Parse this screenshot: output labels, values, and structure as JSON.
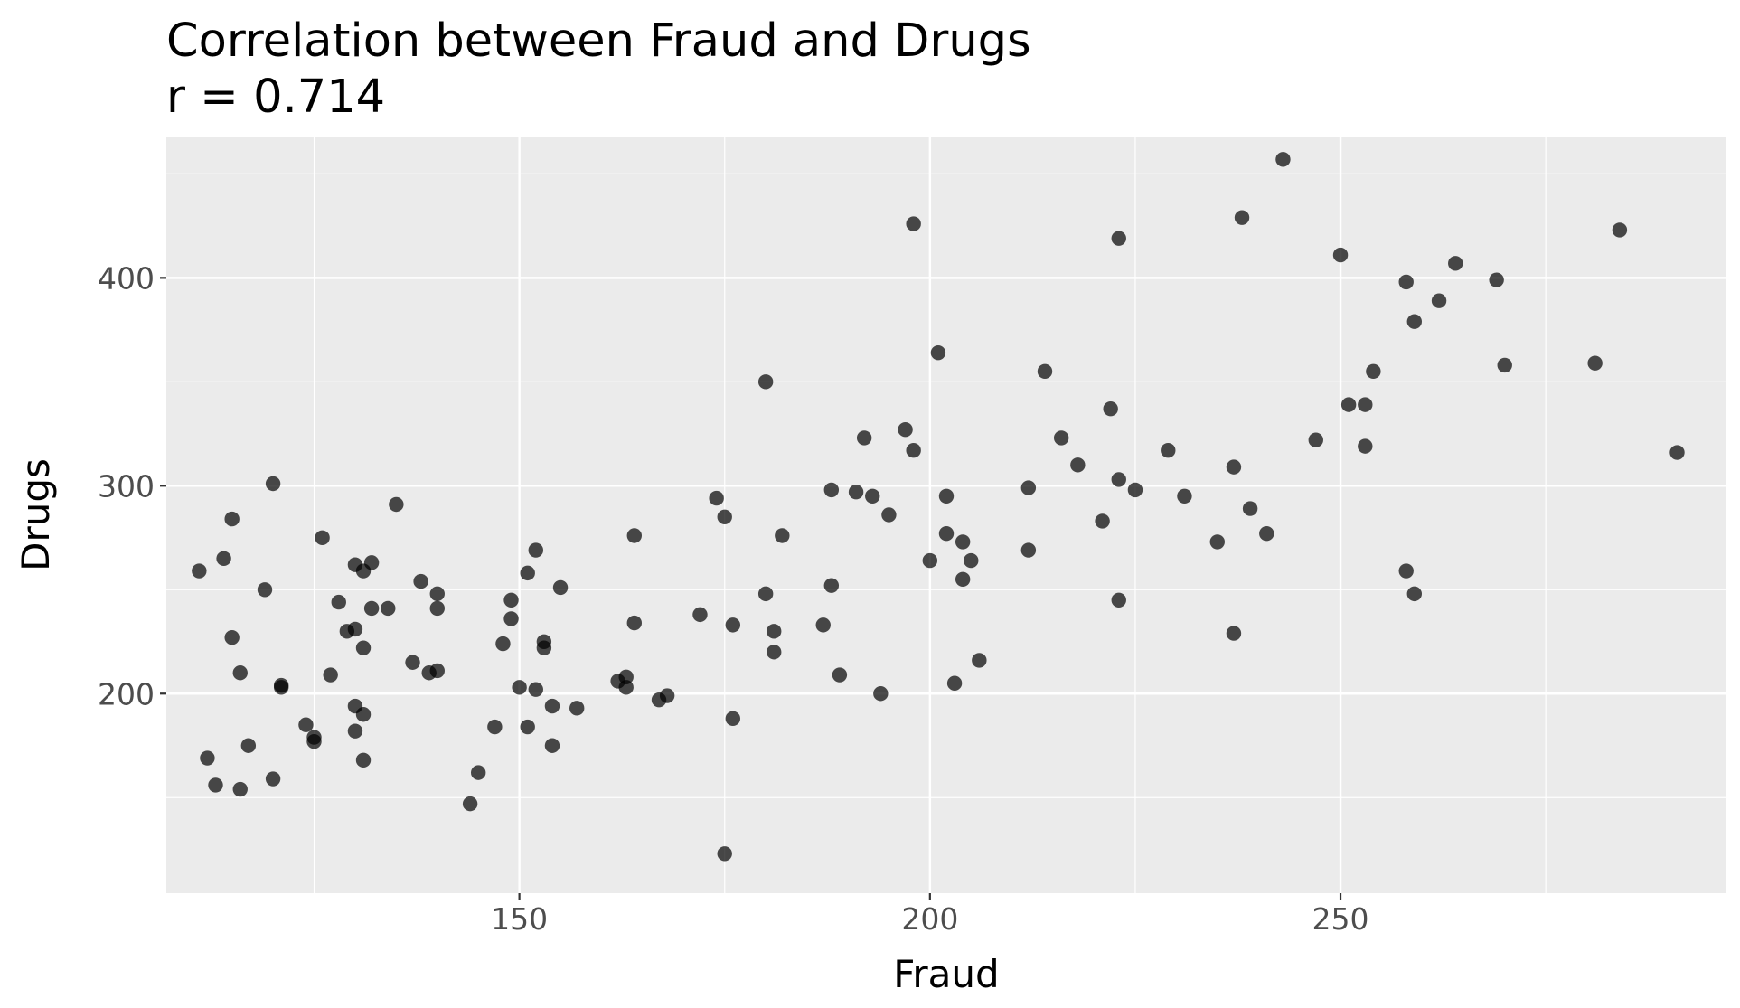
{
  "chart_data": {
    "type": "scatter",
    "title": "Correlation between Fraud and Drugs",
    "subtitle": "r = 0.714",
    "xlabel": "Fraud",
    "ylabel": "Drugs",
    "xlim": [
      107,
      297
    ],
    "ylim": [
      104,
      468
    ],
    "xticks": [
      150,
      200,
      250
    ],
    "yticks": [
      200,
      300,
      400
    ],
    "x_tick_labels": [
      "150",
      "200",
      "250"
    ],
    "y_tick_labels": [
      "200",
      "300",
      "400"
    ],
    "grid": true,
    "point_color": "#000000",
    "point_opacity": 0.7,
    "panel_color": "#ebebeb",
    "points": [
      [
        111,
        259
      ],
      [
        112,
        169
      ],
      [
        113,
        156
      ],
      [
        114,
        265
      ],
      [
        115,
        284
      ],
      [
        115,
        227
      ],
      [
        116,
        154
      ],
      [
        116,
        210
      ],
      [
        117,
        175
      ],
      [
        119,
        250
      ],
      [
        120,
        301
      ],
      [
        120,
        159
      ],
      [
        121,
        204
      ],
      [
        121,
        203
      ],
      [
        124,
        185
      ],
      [
        125,
        179
      ],
      [
        125,
        177
      ],
      [
        126,
        275
      ],
      [
        127,
        209
      ],
      [
        128,
        244
      ],
      [
        129,
        230
      ],
      [
        130,
        262
      ],
      [
        130,
        231
      ],
      [
        130,
        194
      ],
      [
        130,
        182
      ],
      [
        131,
        259
      ],
      [
        131,
        222
      ],
      [
        131,
        190
      ],
      [
        131,
        168
      ],
      [
        132,
        263
      ],
      [
        132,
        241
      ],
      [
        134,
        241
      ],
      [
        135,
        291
      ],
      [
        137,
        215
      ],
      [
        138,
        254
      ],
      [
        139,
        210
      ],
      [
        140,
        248
      ],
      [
        140,
        241
      ],
      [
        140,
        211
      ],
      [
        144,
        147
      ],
      [
        145,
        162
      ],
      [
        147,
        184
      ],
      [
        148,
        224
      ],
      [
        149,
        245
      ],
      [
        149,
        236
      ],
      [
        150,
        203
      ],
      [
        151,
        258
      ],
      [
        151,
        184
      ],
      [
        152,
        269
      ],
      [
        152,
        202
      ],
      [
        153,
        225
      ],
      [
        153,
        222
      ],
      [
        154,
        194
      ],
      [
        154,
        175
      ],
      [
        155,
        251
      ],
      [
        157,
        193
      ],
      [
        162,
        206
      ],
      [
        163,
        208
      ],
      [
        163,
        203
      ],
      [
        164,
        276
      ],
      [
        164,
        234
      ],
      [
        167,
        197
      ],
      [
        168,
        199
      ],
      [
        172,
        238
      ],
      [
        174,
        294
      ],
      [
        175,
        285
      ],
      [
        175,
        123
      ],
      [
        176,
        233
      ],
      [
        176,
        188
      ],
      [
        180,
        350
      ],
      [
        180,
        248
      ],
      [
        181,
        230
      ],
      [
        181,
        220
      ],
      [
        182,
        276
      ],
      [
        187,
        233
      ],
      [
        188,
        298
      ],
      [
        188,
        252
      ],
      [
        189,
        209
      ],
      [
        191,
        297
      ],
      [
        192,
        323
      ],
      [
        193,
        295
      ],
      [
        194,
        200
      ],
      [
        195,
        286
      ],
      [
        197,
        327
      ],
      [
        198,
        426
      ],
      [
        198,
        317
      ],
      [
        200,
        264
      ],
      [
        201,
        364
      ],
      [
        202,
        295
      ],
      [
        202,
        277
      ],
      [
        203,
        205
      ],
      [
        204,
        273
      ],
      [
        204,
        255
      ],
      [
        205,
        264
      ],
      [
        206,
        216
      ],
      [
        212,
        299
      ],
      [
        212,
        269
      ],
      [
        214,
        355
      ],
      [
        216,
        323
      ],
      [
        218,
        310
      ],
      [
        221,
        283
      ],
      [
        222,
        337
      ],
      [
        223,
        419
      ],
      [
        223,
        303
      ],
      [
        223,
        245
      ],
      [
        225,
        298
      ],
      [
        229,
        317
      ],
      [
        231,
        295
      ],
      [
        235,
        273
      ],
      [
        237,
        309
      ],
      [
        237,
        229
      ],
      [
        238,
        429
      ],
      [
        239,
        289
      ],
      [
        241,
        277
      ],
      [
        243,
        457
      ],
      [
        247,
        322
      ],
      [
        250,
        411
      ],
      [
        251,
        339
      ],
      [
        253,
        339
      ],
      [
        253,
        319
      ],
      [
        254,
        355
      ],
      [
        258,
        398
      ],
      [
        258,
        259
      ],
      [
        259,
        379
      ],
      [
        259,
        248
      ],
      [
        262,
        389
      ],
      [
        264,
        407
      ],
      [
        269,
        399
      ],
      [
        270,
        358
      ],
      [
        281,
        359
      ],
      [
        284,
        423
      ],
      [
        291,
        316
      ]
    ]
  }
}
